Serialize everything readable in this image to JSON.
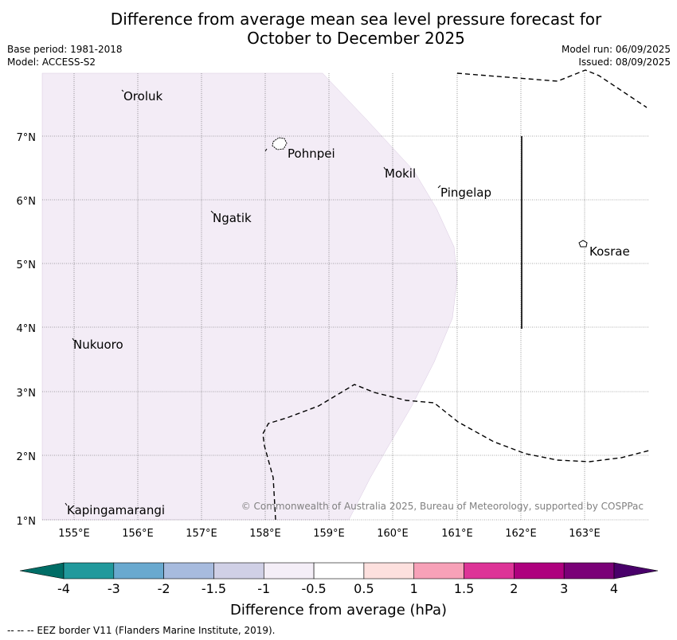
{
  "title": {
    "line1": "Difference from average mean sea level pressure forecast for",
    "line2": "October to December 2025"
  },
  "meta": {
    "base_period": "Base period: 1981-2018",
    "model": "Model: ACCESS-S2",
    "model_run": "Model run: 06/09/2025",
    "issued": "Issued: 08/09/2025"
  },
  "map": {
    "lon_ticks": [
      "155°E",
      "156°E",
      "157°E",
      "158°E",
      "159°E",
      "160°E",
      "161°E",
      "162°E",
      "163°E"
    ],
    "lat_ticks": [
      "7°N",
      "6°N",
      "5°N",
      "4°N",
      "3°N",
      "2°N",
      "1°N"
    ],
    "places": [
      "Oroluk",
      "Pohnpei",
      "Mokil",
      "Pingelap",
      "Ngatik",
      "Kosrae",
      "Nukuoro",
      "Kapingamarangi"
    ],
    "shaded_region_color": "#f3ecf6",
    "copyright": "© Commonwealth of Australia 2025, Bureau of Meteorology, supported by COSPPac"
  },
  "colorbar": {
    "label": "Difference from average (hPa)",
    "ticks": [
      "-4",
      "-3",
      "-2",
      "-1.5",
      "-1",
      "-0.5",
      "0.5",
      "1",
      "1.5",
      "2",
      "3",
      "4"
    ],
    "colors": [
      "#006d66",
      "#21999c",
      "#69a9cf",
      "#a7bbde",
      "#d0d0e6",
      "#f4eef7",
      "#ffffff",
      "#fde0de",
      "#f7a1b8",
      "#dd3497",
      "#ae017e",
      "#7a0177",
      "#49006a"
    ]
  },
  "footnote": "--  --  -- EEZ border V11 (Flanders Marine Institute, 2019)."
}
